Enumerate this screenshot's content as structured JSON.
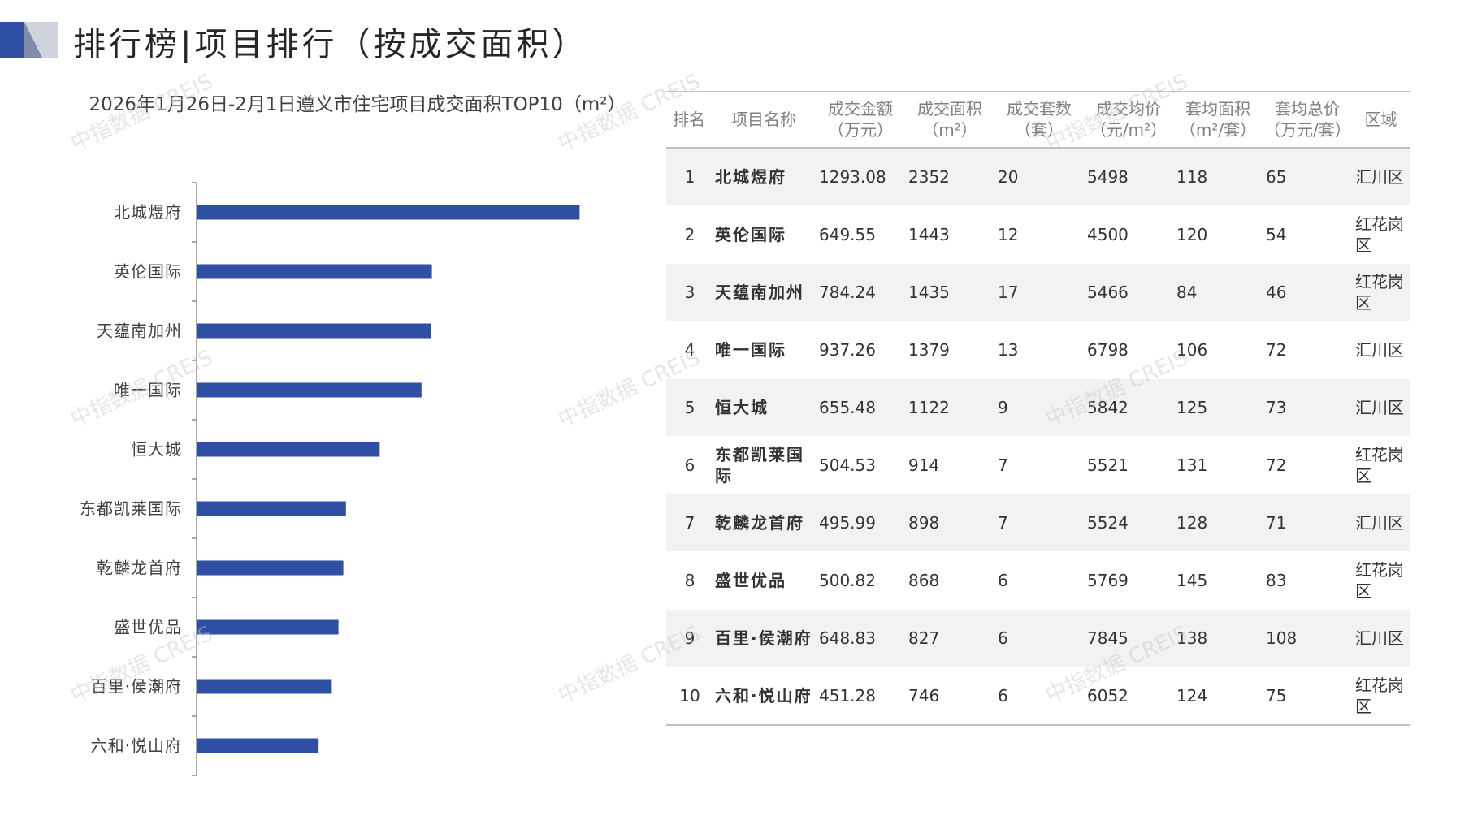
{
  "header": {
    "title": "排行榜|项目排行（按成交面积）"
  },
  "colors": {
    "bar": "#2f4fa5",
    "accent": "#2f4fa5",
    "deco_grey": "#cfd3dc"
  },
  "watermark": "中指数据 CREIS",
  "chart_data": {
    "type": "bar",
    "orientation": "horizontal",
    "title": "2026年1月26日-2月1日遵义市住宅项目成交面积TOP10（m²）",
    "categories": [
      "北城煜府",
      "英伦国际",
      "天蕴南加州",
      "唯一国际",
      "恒大城",
      "东都凯莱国际",
      "乾麟龙首府",
      "盛世优品",
      "百里·侯潮府",
      "六和·悦山府"
    ],
    "values": [
      2352,
      1443,
      1435,
      1379,
      1122,
      914,
      898,
      868,
      827,
      746
    ],
    "xlim": [
      0,
      2500
    ],
    "grid": false,
    "legend": false
  },
  "table": {
    "headers": [
      [
        "排名"
      ],
      [
        "项目名称"
      ],
      [
        "成交金额",
        "（万元）"
      ],
      [
        "成交面积",
        "（m²）"
      ],
      [
        "成交套数",
        "（套）"
      ],
      [
        "成交均价",
        "（元/m²）"
      ],
      [
        "套均面积",
        "（m²/套）"
      ],
      [
        "套均总价",
        "（万元/套）"
      ],
      [
        "区域"
      ]
    ],
    "rows": [
      [
        "1",
        "北城煜府",
        "1293.08",
        "2352",
        "20",
        "5498",
        "118",
        "65",
        "汇川区"
      ],
      [
        "2",
        "英伦国际",
        "649.55",
        "1443",
        "12",
        "4500",
        "120",
        "54",
        "红花岗区"
      ],
      [
        "3",
        "天蕴南加州",
        "784.24",
        "1435",
        "17",
        "5466",
        "84",
        "46",
        "红花岗区"
      ],
      [
        "4",
        "唯一国际",
        "937.26",
        "1379",
        "13",
        "6798",
        "106",
        "72",
        "汇川区"
      ],
      [
        "5",
        "恒大城",
        "655.48",
        "1122",
        "9",
        "5842",
        "125",
        "73",
        "汇川区"
      ],
      [
        "6",
        "东都凯莱国际",
        "504.53",
        "914",
        "7",
        "5521",
        "131",
        "72",
        "红花岗区"
      ],
      [
        "7",
        "乾麟龙首府",
        "495.99",
        "898",
        "7",
        "5524",
        "128",
        "71",
        "汇川区"
      ],
      [
        "8",
        "盛世优品",
        "500.82",
        "868",
        "6",
        "5769",
        "145",
        "83",
        "红花岗区"
      ],
      [
        "9",
        "百里·侯潮府",
        "648.83",
        "827",
        "6",
        "7845",
        "138",
        "108",
        "汇川区"
      ],
      [
        "10",
        "六和·悦山府",
        "451.28",
        "746",
        "6",
        "6052",
        "124",
        "75",
        "红花岗区"
      ]
    ]
  }
}
